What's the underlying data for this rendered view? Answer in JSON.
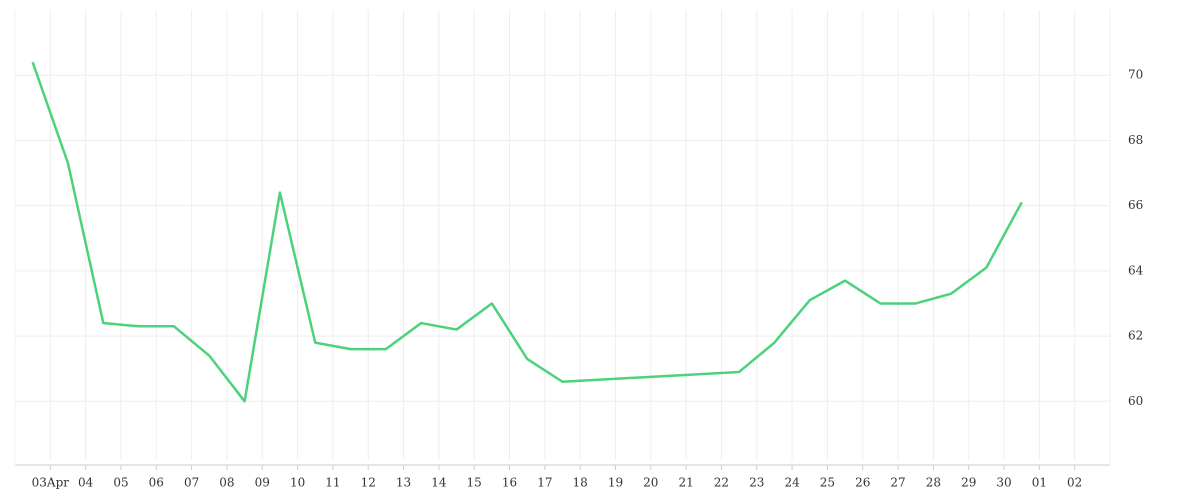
{
  "chart_data": {
    "type": "line",
    "x": [
      2.5,
      3.5,
      4.5,
      5.5,
      6.5,
      7.5,
      8.5,
      9.5,
      10.5,
      11.5,
      12.5,
      13.5,
      14.5,
      15.5,
      16.5,
      17.5,
      22.5,
      23.5,
      24.5,
      25.5,
      26.5,
      27.5,
      28.5,
      29.5,
      30.5
    ],
    "series": [
      {
        "color": "#4cd27a",
        "values": [
          70.4,
          67.3,
          62.4,
          62.3,
          62.3,
          61.4,
          60.0,
          66.4,
          61.8,
          61.6,
          61.6,
          62.4,
          62.2,
          63.0,
          61.3,
          60.6,
          60.9,
          61.8,
          63.1,
          63.7,
          63.0,
          63.0,
          63.3,
          64.1,
          66.1
        ]
      }
    ],
    "xlim": [
      2,
      33
    ],
    "xticks": [
      {
        "value": 3,
        "label": "03Apr"
      },
      {
        "value": 4,
        "label": "04"
      },
      {
        "value": 5,
        "label": "05"
      },
      {
        "value": 6,
        "label": "06"
      },
      {
        "value": 7,
        "label": "07"
      },
      {
        "value": 8,
        "label": "08"
      },
      {
        "value": 9,
        "label": "09"
      },
      10,
      11,
      12,
      13,
      14,
      15,
      16,
      17,
      18,
      19,
      20,
      21,
      22,
      23,
      24,
      25,
      26,
      27,
      28,
      29,
      30,
      {
        "value": 31,
        "label": "01"
      },
      {
        "value": 32,
        "label": "02"
      }
    ],
    "ylim": [
      58.2,
      72
    ],
    "yticks": [
      60,
      62,
      64,
      66,
      68,
      70
    ],
    "grid": true
  }
}
